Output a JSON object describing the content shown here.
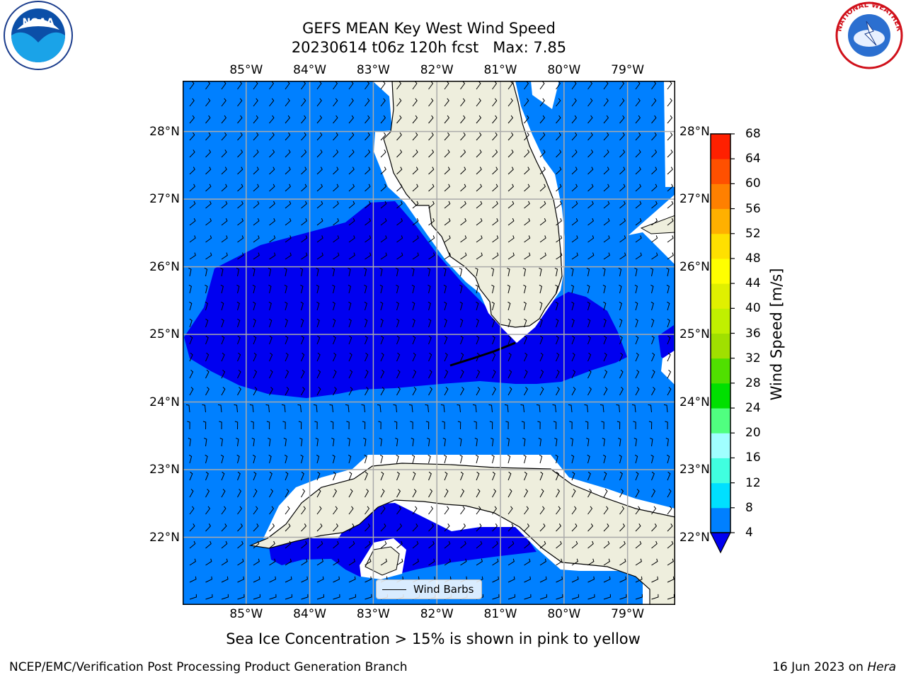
{
  "title": {
    "line1": "GEFS MEAN Key West Wind Speed",
    "line2": "20230614 t06z 120h fcst   Max: 7.85"
  },
  "map": {
    "lon_range": [
      -86.0,
      -78.25
    ],
    "lat_range": [
      21.0,
      28.75
    ],
    "lon_ticks": [
      {
        "value": -85,
        "label": "85°W"
      },
      {
        "value": -84,
        "label": "84°W"
      },
      {
        "value": -83,
        "label": "83°W"
      },
      {
        "value": -82,
        "label": "82°W"
      },
      {
        "value": -81,
        "label": "81°W"
      },
      {
        "value": -80,
        "label": "80°W"
      },
      {
        "value": -79,
        "label": "79°W"
      }
    ],
    "lat_ticks": [
      {
        "value": 28,
        "label": "28°N"
      },
      {
        "value": 27,
        "label": "27°N"
      },
      {
        "value": 26,
        "label": "26°N"
      },
      {
        "value": 25,
        "label": "25°N"
      },
      {
        "value": 24,
        "label": "24°N"
      },
      {
        "value": 23,
        "label": "23°N"
      },
      {
        "value": 22,
        "label": "22°N"
      }
    ],
    "colors": {
      "ocean_4_8": "#0080ff",
      "ocean_lt4": "#0000f0",
      "land": "#eeeedd",
      "grid": "#aaaaaa"
    }
  },
  "colorbar": {
    "label": "Wind Speed [m/s]",
    "ticks": [
      "4",
      "8",
      "12",
      "16",
      "20",
      "24",
      "28",
      "32",
      "36",
      "40",
      "44",
      "48",
      "52",
      "56",
      "60",
      "64",
      "68"
    ],
    "colors": [
      "#0080ff",
      "#00e0ff",
      "#40ffe0",
      "#a0ffff",
      "#50ff80",
      "#00e000",
      "#50e000",
      "#a0e000",
      "#c0f000",
      "#e0f000",
      "#ffff00",
      "#ffe000",
      "#ffb000",
      "#ff8000",
      "#ff5000",
      "#ff2000"
    ],
    "extend_color": "#0000f0"
  },
  "legend": {
    "label": "Wind Barbs"
  },
  "caption": "Sea Ice Concentration > 15% is shown in pink to yellow",
  "footer": {
    "left": "NCEP/EMC/Verification Post Processing Product Generation Branch",
    "right_date": "16 Jun 2023 on",
    "right_host": "Hera"
  }
}
